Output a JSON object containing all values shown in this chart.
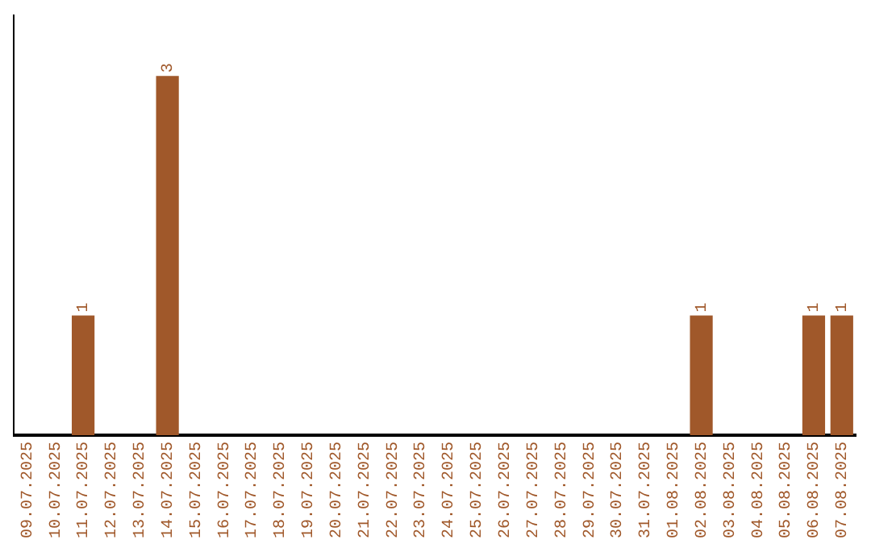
{
  "chart_data": {
    "type": "bar",
    "categories": [
      "09.07.2025",
      "10.07.2025",
      "11.07.2025",
      "12.07.2025",
      "13.07.2025",
      "14.07.2025",
      "15.07.2025",
      "16.07.2025",
      "17.07.2025",
      "18.07.2025",
      "19.07.2025",
      "20.07.2025",
      "21.07.2025",
      "22.07.2025",
      "23.07.2025",
      "24.07.2025",
      "25.07.2025",
      "26.07.2025",
      "27.07.2025",
      "28.07.2025",
      "29.07.2025",
      "30.07.2025",
      "31.07.2025",
      "01.08.2025",
      "02.08.2025",
      "03.08.2025",
      "04.08.2025",
      "05.08.2025",
      "06.08.2025",
      "07.08.2025"
    ],
    "values": [
      0,
      0,
      1,
      0,
      0,
      3,
      0,
      0,
      0,
      0,
      0,
      0,
      0,
      0,
      0,
      0,
      0,
      0,
      0,
      0,
      0,
      0,
      0,
      0,
      1,
      0,
      0,
      0,
      1,
      1
    ],
    "value_labels": [
      null,
      null,
      "1",
      null,
      null,
      "3",
      null,
      null,
      null,
      null,
      null,
      null,
      null,
      null,
      null,
      null,
      null,
      null,
      null,
      null,
      null,
      null,
      null,
      null,
      "1",
      null,
      null,
      null,
      "1",
      "1"
    ],
    "color": "#a0582a",
    "tick_labels": "x",
    "grid": false,
    "legend": false
  }
}
